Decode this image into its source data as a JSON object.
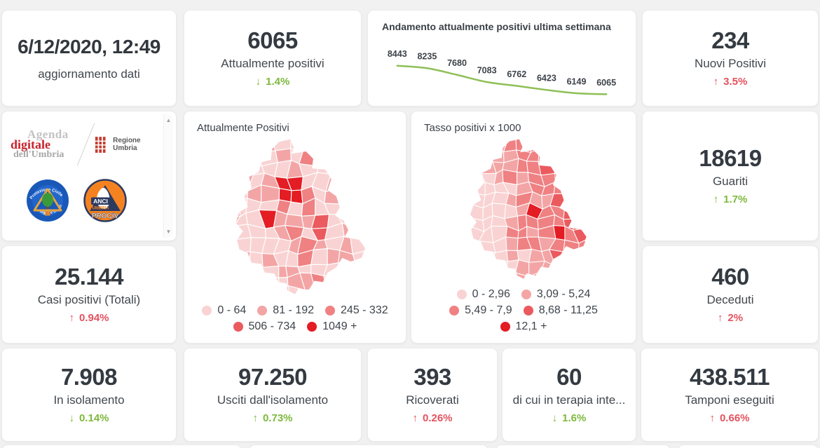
{
  "colors": {
    "accent_green": "#7db83c",
    "accent_red": "#e4525f",
    "text_dark": "#343a41",
    "text_label": "#41474e",
    "chart_line_green": "#8fbf56",
    "map_palette": [
      "#f9d3d3",
      "#f3a5a6",
      "#ef8183",
      "#eb5a5e",
      "#e41c24"
    ]
  },
  "icons": {
    "scroll_up": "▲",
    "scroll_down": "▼",
    "up_arrow": "↑",
    "down_arrow": "↓"
  },
  "header": {
    "datetime": "6/12/2020, 12:49",
    "subtitle": "aggiornamento dati"
  },
  "stats": {
    "attualmente_positivi": {
      "value": "6065",
      "label": "Attualmente positivi",
      "arrow": "↓",
      "trend": "1.4%"
    },
    "nuovi_positivi": {
      "value": "234",
      "label": "Nuovi Positivi",
      "arrow": "↑",
      "trend": "3.5%"
    },
    "guariti": {
      "value": "18619",
      "label": "Guariti",
      "arrow": "↑",
      "trend": "1.7%"
    },
    "casi_totali": {
      "value": "25.144",
      "label": "Casi positivi (Totali)",
      "arrow": "↑",
      "trend": "0.94%"
    },
    "deceduti": {
      "value": "460",
      "label": "Deceduti",
      "arrow": "↑",
      "trend": "2%"
    },
    "in_isolamento": {
      "value": "7.908",
      "label": "In isolamento",
      "arrow": "↓",
      "trend": "0.14%"
    },
    "usciti_isolamento": {
      "value": "97.250",
      "label": "Usciti dall'isolamento",
      "arrow": "↑",
      "trend": "0.73%"
    },
    "ricoverati": {
      "value": "393",
      "label": "Ricoverati",
      "arrow": "↑",
      "trend": "0.26%"
    },
    "terapia_intensiva": {
      "value": "60",
      "label": "di cui in terapia inte...",
      "arrow": "↓",
      "trend": "1.6%"
    },
    "tamponi": {
      "value": "438.511",
      "label": "Tamponi eseguiti",
      "arrow": "↑",
      "trend": "0.66%"
    }
  },
  "chart_data": [
    {
      "type": "line",
      "title": "Andamento attualmente positivi ultima settimana",
      "series_name": "attualmente positivi",
      "x": [
        1,
        2,
        3,
        4,
        5,
        6,
        7,
        8
      ],
      "values": [
        8443,
        8235,
        7680,
        7083,
        6762,
        6423,
        6149,
        6065
      ],
      "line_color": "#8fbf56",
      "data_labels": true,
      "grid": false,
      "axes_visible": false,
      "legend_position": "none"
    },
    {
      "type": "choropleth",
      "title": "Attualmente Positivi",
      "region": "Umbria",
      "legend_labels": [
        "0 - 64",
        "81 - 192",
        "245 - 332",
        "506 - 734",
        "1049 +"
      ],
      "legend_position": "bottom"
    },
    {
      "type": "choropleth",
      "title": "Tasso positivi x 1000",
      "region": "Umbria",
      "legend_labels": [
        "0 - 2,96",
        "3,09 - 5,24",
        "5,49 - 7,9",
        "8,68 - 11,25",
        "12,1 +"
      ],
      "legend_position": "bottom"
    }
  ],
  "logos": {
    "agenda": {
      "line1": "Agenda",
      "line2": "digitale",
      "line3": "dell'Umbria"
    },
    "regione": {
      "label": "Regione Umbria"
    },
    "protezione": {
      "top": "Protezione Civile",
      "bottom": "Regione Umbria"
    },
    "anci": {
      "line1": "ANCI",
      "line2": "UMBRIA",
      "line3": "PROCIV"
    }
  }
}
